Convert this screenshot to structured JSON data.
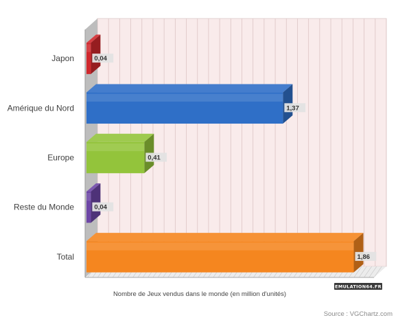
{
  "chart_data": {
    "type": "bar",
    "orientation": "horizontal",
    "categories": [
      "Japon",
      "Amérique du Nord",
      "Europe",
      "Reste du Monde",
      "Total"
    ],
    "values": [
      0.04,
      1.37,
      0.41,
      0.04,
      1.86
    ],
    "value_labels": [
      "0,04",
      "1,37",
      "0,41",
      "0,04",
      "1,86"
    ],
    "colors": [
      "#d0282d",
      "#2f6fc7",
      "#93c43b",
      "#6d46a6",
      "#f5861f"
    ],
    "xlabel": "Nombre de Jeux vendus dans le monde (en million d'unités)",
    "xlim": [
      0,
      2
    ],
    "grid": true,
    "legend": "none"
  },
  "source_text": "Source : VGChartz.com",
  "logo": {
    "text": "EMULATION64.FR"
  }
}
